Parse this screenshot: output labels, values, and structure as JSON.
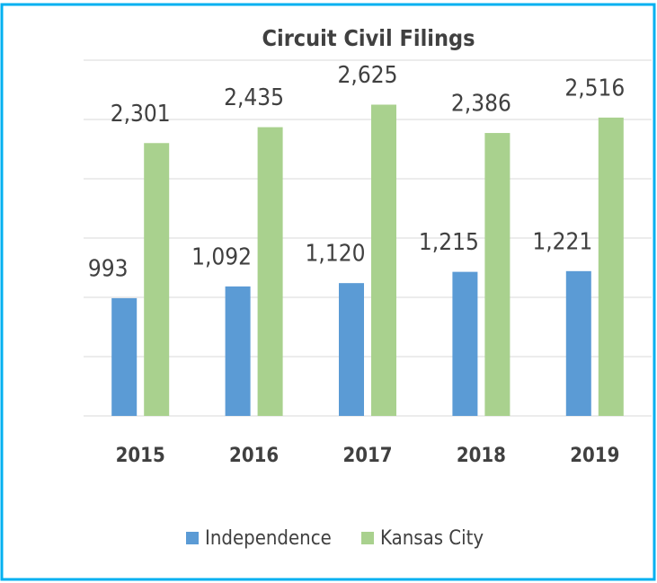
{
  "chart_data": {
    "type": "bar",
    "title": "Circuit Civil Filings",
    "categories": [
      "2015",
      "2016",
      "2017",
      "2018",
      "2019"
    ],
    "series": [
      {
        "name": "Independence",
        "color": "#5b9bd5",
        "values": [
          993,
          1092,
          1120,
          1215,
          1221
        ],
        "value_labels": [
          "993",
          "1,092",
          "1,120",
          "1,215",
          "1,221"
        ]
      },
      {
        "name": "Kansas City",
        "color": "#a9d18e",
        "values": [
          2301,
          2435,
          2625,
          2386,
          2516
        ],
        "value_labels": [
          "2,301",
          "2,435",
          "2,625",
          "2,386",
          "2,516"
        ]
      }
    ],
    "ylim": [
      0,
      3000
    ],
    "yticks": [
      0,
      500,
      1000,
      1500,
      2000,
      2500,
      3000
    ],
    "grid": true,
    "legend": "bottom"
  }
}
